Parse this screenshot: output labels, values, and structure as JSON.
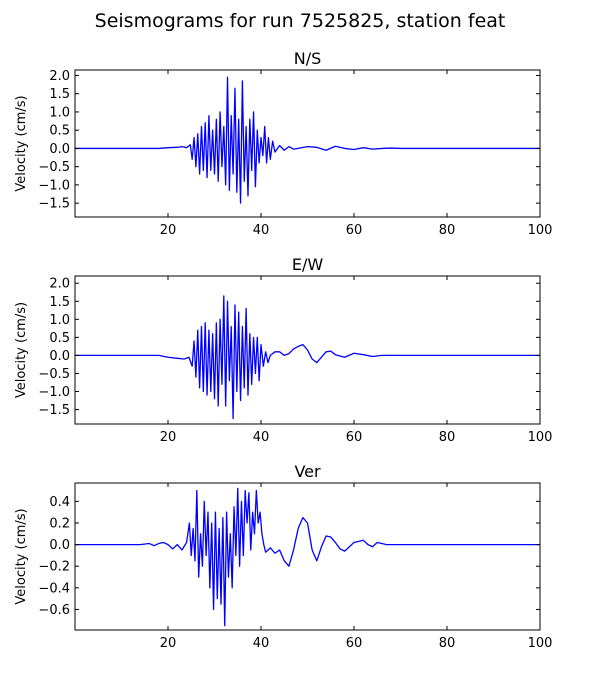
{
  "figure": {
    "title": "Seismograms for run 7525825, station feat"
  },
  "chart_data": [
    {
      "type": "line",
      "title": "N/S",
      "xlabel": "",
      "ylabel": "Velocity (cm/s)",
      "xlim": [
        0,
        100
      ],
      "ylim": [
        -1.88,
        2.15
      ],
      "xticks": [
        20,
        40,
        60,
        80,
        100
      ],
      "yticks": [
        -1.5,
        -1.0,
        -0.5,
        0.0,
        0.5,
        1.0,
        1.5,
        2.0
      ],
      "ytick_labels": [
        "−1.5",
        "−1.0",
        "−0.5",
        "0.0",
        "0.5",
        "1.0",
        "1.5",
        "2.0"
      ],
      "grid": false,
      "line_color": "#0000ff",
      "series": [
        {
          "x": [
            0,
            18,
            20,
            22,
            23,
            24,
            24.8,
            25.2,
            25.6,
            26.0,
            26.4,
            26.8,
            27.2,
            27.6,
            28.0,
            28.4,
            28.8,
            29.2,
            29.6,
            30.0,
            30.4,
            30.8,
            31.2,
            31.6,
            32.0,
            32.4,
            32.8,
            33.2,
            33.6,
            34.0,
            34.4,
            34.8,
            35.2,
            35.6,
            36.0,
            36.4,
            36.8,
            37.2,
            37.6,
            38.0,
            38.4,
            38.8,
            39.2,
            39.6,
            40.0,
            40.4,
            40.8,
            41.2,
            41.6,
            42.0,
            42.5,
            43.0,
            44.0,
            45.0,
            46.0,
            47.0,
            48.0,
            50.0,
            52.0,
            54.0,
            56.0,
            58.0,
            60.0,
            62.0,
            64.0,
            66.0,
            68.0,
            70.0,
            75.0,
            100.0
          ],
          "y": [
            0.0,
            0.0,
            0.02,
            0.03,
            0.05,
            0.02,
            0.1,
            -0.3,
            0.3,
            -0.5,
            0.4,
            -0.7,
            0.6,
            -0.6,
            0.7,
            -0.8,
            0.9,
            -0.6,
            0.5,
            -0.7,
            0.8,
            -0.9,
            1.0,
            -0.5,
            0.6,
            -1.0,
            1.95,
            -1.15,
            0.9,
            -0.7,
            1.65,
            -1.2,
            0.8,
            -1.5,
            1.85,
            -0.9,
            0.6,
            -1.3,
            0.8,
            -0.6,
            1.0,
            -1.05,
            0.5,
            -0.4,
            0.3,
            -0.2,
            0.6,
            -0.4,
            0.3,
            -0.3,
            0.2,
            -0.1,
            0.08,
            -0.05,
            0.05,
            -0.02,
            0.0,
            0.05,
            0.03,
            -0.05,
            0.06,
            0.0,
            -0.03,
            0.02,
            -0.02,
            0.0,
            0.01,
            0.0,
            0.0,
            0.0
          ]
        }
      ]
    },
    {
      "type": "line",
      "title": "E/W",
      "xlabel": "",
      "ylabel": "Velocity (cm/s)",
      "xlim": [
        0,
        100
      ],
      "ylim": [
        -1.9,
        2.2
      ],
      "xticks": [
        20,
        40,
        60,
        80,
        100
      ],
      "yticks": [
        -1.5,
        -1.0,
        -0.5,
        0.0,
        0.5,
        1.0,
        1.5,
        2.0
      ],
      "ytick_labels": [
        "−1.5",
        "−1.0",
        "−0.5",
        "0.0",
        "0.5",
        "1.0",
        "1.5",
        "2.0"
      ],
      "grid": false,
      "line_color": "#0000ff",
      "series": [
        {
          "x": [
            0,
            18,
            20,
            22,
            23.5,
            24.5,
            25.2,
            25.6,
            26.0,
            26.4,
            26.8,
            27.2,
            27.6,
            28.0,
            28.4,
            28.8,
            29.2,
            29.6,
            30.0,
            30.4,
            30.8,
            31.2,
            31.6,
            32.0,
            32.4,
            32.8,
            33.2,
            33.6,
            34.0,
            34.4,
            34.8,
            35.2,
            35.6,
            36.0,
            36.4,
            36.8,
            37.2,
            37.6,
            38.0,
            38.4,
            38.8,
            39.2,
            39.6,
            40.0,
            40.5,
            41.0,
            41.5,
            42.0,
            43.0,
            44.0,
            45.0,
            46.0,
            47.0,
            48.0,
            49.0,
            50.0,
            51.0,
            52.0,
            53.0,
            54.0,
            55.0,
            56.0,
            58.0,
            60.0,
            62.0,
            64.0,
            66.0,
            70.0,
            100.0
          ],
          "y": [
            0.0,
            0.0,
            -0.05,
            -0.08,
            -0.1,
            -0.05,
            -0.3,
            0.4,
            -0.6,
            0.7,
            -0.9,
            0.8,
            -1.0,
            0.9,
            -1.1,
            0.7,
            -1.0,
            0.6,
            -1.2,
            0.9,
            -1.4,
            1.0,
            -0.8,
            1.65,
            -1.4,
            1.5,
            -0.7,
            0.8,
            -1.75,
            1.4,
            -1.0,
            1.2,
            -1.25,
            0.8,
            -0.9,
            1.3,
            -1.1,
            0.6,
            -0.8,
            0.5,
            -0.5,
            0.5,
            -0.7,
            0.3,
            -0.3,
            0.1,
            -0.2,
            0.0,
            0.1,
            0.1,
            0.0,
            0.05,
            0.18,
            0.25,
            0.3,
            0.15,
            -0.1,
            -0.2,
            -0.05,
            0.1,
            0.12,
            0.02,
            -0.05,
            0.06,
            0.02,
            -0.03,
            0.0,
            0.0,
            0.0
          ]
        }
      ]
    },
    {
      "type": "line",
      "title": "Ver",
      "xlabel": "",
      "ylabel": "Velocity (cm/s)",
      "xlim": [
        0,
        100
      ],
      "ylim": [
        -0.79,
        0.57
      ],
      "xticks": [
        20,
        40,
        60,
        80,
        100
      ],
      "yticks": [
        -0.6,
        -0.4,
        -0.2,
        0.0,
        0.2,
        0.4
      ],
      "ytick_labels": [
        "−0.6",
        "−0.4",
        "−0.2",
        "0.0",
        "0.2",
        "0.4"
      ],
      "grid": false,
      "line_color": "#0000ff",
      "series": [
        {
          "x": [
            0,
            14,
            16,
            17,
            18,
            19,
            20,
            21,
            22,
            23,
            24,
            24.6,
            25.0,
            25.4,
            25.8,
            26.2,
            26.6,
            27.0,
            27.4,
            27.8,
            28.2,
            28.6,
            29.0,
            29.4,
            29.8,
            30.2,
            30.6,
            31.0,
            31.4,
            31.8,
            32.2,
            32.6,
            33.0,
            33.4,
            33.8,
            34.2,
            34.6,
            35.0,
            35.4,
            35.8,
            36.2,
            36.6,
            37.0,
            37.4,
            37.8,
            38.2,
            38.6,
            39.0,
            39.4,
            39.8,
            40.2,
            40.6,
            41.0,
            42.0,
            43.0,
            44.0,
            45.0,
            46.0,
            47.0,
            48.0,
            49.0,
            50.0,
            51.0,
            52.0,
            53.0,
            54.0,
            55.0,
            56.0,
            57.0,
            58.0,
            59.0,
            60.0,
            61.0,
            62.0,
            63.0,
            64.0,
            65.0,
            66.0,
            67.0,
            68.0,
            70.0,
            72.0,
            100.0
          ],
          "y": [
            0.0,
            0.0,
            0.01,
            -0.01,
            0.01,
            0.02,
            0.0,
            -0.04,
            0.0,
            -0.05,
            0.02,
            0.2,
            -0.1,
            0.15,
            -0.15,
            0.5,
            -0.3,
            0.1,
            -0.2,
            0.4,
            -0.1,
            0.3,
            -0.4,
            0.2,
            -0.6,
            0.3,
            -0.5,
            0.15,
            -0.55,
            0.25,
            -0.75,
            0.3,
            -0.3,
            0.1,
            -0.4,
            0.35,
            -0.1,
            0.52,
            -0.2,
            0.4,
            -0.1,
            0.5,
            0.2,
            0.48,
            -0.05,
            0.3,
            0.1,
            0.5,
            0.2,
            0.3,
            0.1,
            0.0,
            -0.07,
            -0.03,
            -0.08,
            -0.05,
            -0.15,
            -0.2,
            -0.05,
            0.15,
            0.25,
            0.2,
            -0.05,
            -0.15,
            -0.02,
            0.08,
            0.07,
            0.02,
            -0.04,
            -0.06,
            -0.02,
            0.02,
            0.03,
            0.04,
            0.0,
            -0.02,
            0.02,
            0.01,
            0.0,
            0.0,
            0.0,
            0.0,
            0.0
          ]
        }
      ]
    }
  ]
}
